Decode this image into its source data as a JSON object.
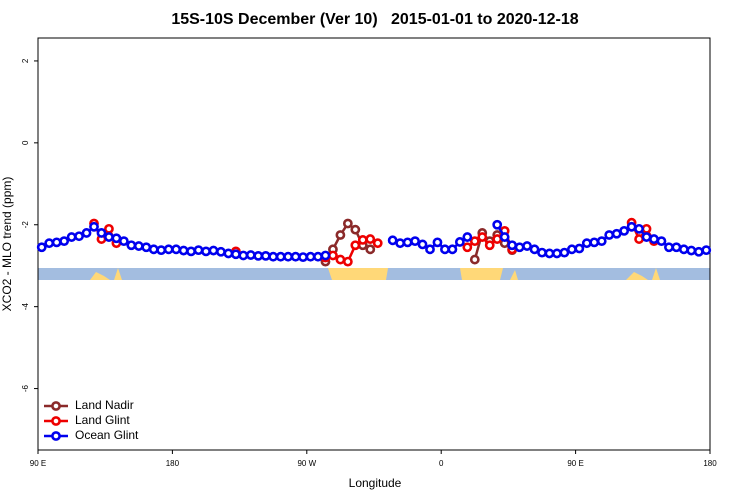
{
  "chart_data": {
    "type": "line",
    "title": "15S-10S December (Ver 10)   2015-01-01 to 2020-12-18",
    "x_label": "Longitude",
    "y_label": "XCO2 - MLO trend (ppm)",
    "xlim": [
      90,
      540
    ],
    "xticks": [
      {
        "value": 90,
        "label": "90 E"
      },
      180,
      {
        "value": 270,
        "label": "90 W"
      },
      {
        "value": 360,
        "label": "0"
      },
      {
        "value": 450,
        "label": "90 E"
      },
      {
        "value": 540,
        "label": "180"
      }
    ],
    "ylim": [
      -7.5,
      2.56
    ],
    "yticks": [
      2,
      0,
      -2,
      -4,
      -6
    ],
    "legend": "bottom-left",
    "x": [
      92.5,
      97.5,
      102.5,
      107.5,
      112.5,
      117.5,
      122.5,
      127.5,
      132.5,
      137.5,
      142.5,
      147.5,
      152.5,
      157.5,
      162.5,
      167.5,
      172.5,
      177.5,
      182.5,
      187.5,
      192.5,
      197.5,
      202.5,
      207.5,
      212.5,
      217.5,
      222.5,
      227.5,
      232.5,
      237.5,
      242.5,
      247.5,
      252.5,
      257.5,
      262.5,
      267.5,
      272.5,
      277.5,
      282.5,
      287.5,
      292.5,
      297.5,
      302.5,
      307.5,
      312.5,
      317.5,
      322.5,
      327.5,
      332.5,
      337.5,
      342.5,
      347.5,
      352.5,
      357.5,
      362.5,
      367.5,
      372.5,
      377.5,
      382.5,
      387.5,
      392.5,
      397.5,
      402.5,
      407.5,
      412.5,
      417.5,
      422.5,
      427.5,
      432.5,
      437.5,
      442.5,
      447.5,
      452.5,
      457.5,
      462.5,
      467.5,
      472.5,
      477.5,
      482.5,
      487.5,
      492.5,
      497.5,
      502.5,
      507.5,
      512.5,
      517.5,
      522.5,
      527.5,
      532.5,
      537.5
    ],
    "series": [
      {
        "name": "Land Nadir",
        "color": "#8b2a2a",
        "values": [
          null,
          null,
          null,
          null,
          null,
          null,
          null,
          null,
          null,
          null,
          null,
          null,
          null,
          null,
          null,
          null,
          null,
          null,
          null,
          null,
          null,
          null,
          null,
          null,
          null,
          null,
          null,
          null,
          null,
          null,
          null,
          null,
          null,
          null,
          null,
          null,
          null,
          null,
          -2.9,
          -2.6,
          -2.25,
          -1.97,
          -2.12,
          -2.5,
          -2.6,
          null,
          null,
          null,
          null,
          null,
          null,
          null,
          null,
          null,
          null,
          null,
          null,
          null,
          -2.85,
          -2.2,
          -2.4,
          -2.25,
          -2.45,
          -2.62,
          null,
          null,
          null,
          null,
          null,
          null,
          null,
          null,
          null,
          null,
          null,
          null,
          null,
          null,
          null,
          null,
          null,
          null,
          null,
          null,
          null,
          null,
          null,
          null,
          null,
          null
        ]
      },
      {
        "name": "Land Glint",
        "color": "#ee0000",
        "values": [
          null,
          null,
          null,
          null,
          null,
          null,
          null,
          -1.97,
          -2.35,
          -2.1,
          -2.45,
          null,
          null,
          null,
          null,
          null,
          null,
          null,
          null,
          null,
          null,
          null,
          null,
          null,
          null,
          null,
          -2.65,
          null,
          null,
          null,
          null,
          null,
          null,
          null,
          null,
          null,
          null,
          null,
          -2.8,
          -2.75,
          -2.85,
          -2.9,
          -2.5,
          -2.37,
          -2.35,
          -2.45,
          null,
          null,
          null,
          null,
          null,
          null,
          null,
          null,
          null,
          null,
          null,
          -2.55,
          -2.4,
          -2.3,
          -2.5,
          -2.35,
          -2.15,
          -2.6,
          null,
          null,
          null,
          null,
          null,
          null,
          null,
          null,
          null,
          null,
          null,
          null,
          null,
          null,
          null,
          -1.95,
          -2.35,
          -2.1,
          -2.4,
          null,
          null,
          null,
          null,
          null,
          null,
          null
        ]
      },
      {
        "name": "Ocean Glint",
        "color": "#0000ee",
        "values": [
          -2.55,
          -2.45,
          -2.43,
          -2.4,
          -2.3,
          -2.28,
          -2.2,
          -2.05,
          -2.2,
          -2.3,
          -2.33,
          -2.4,
          -2.5,
          -2.52,
          -2.55,
          -2.6,
          -2.62,
          -2.6,
          -2.6,
          -2.63,
          -2.65,
          -2.62,
          -2.65,
          -2.63,
          -2.66,
          -2.7,
          -2.72,
          -2.75,
          -2.74,
          -2.76,
          -2.76,
          -2.78,
          -2.78,
          -2.78,
          -2.78,
          -2.79,
          -2.78,
          -2.78,
          -2.75,
          null,
          null,
          null,
          null,
          null,
          null,
          null,
          null,
          -2.38,
          -2.45,
          -2.43,
          -2.4,
          -2.48,
          -2.6,
          -2.43,
          -2.6,
          -2.6,
          -2.42,
          -2.3,
          null,
          null,
          null,
          -2.0,
          -2.3,
          -2.5,
          -2.55,
          -2.52,
          -2.6,
          -2.68,
          -2.7,
          -2.7,
          -2.68,
          -2.6,
          -2.58,
          -2.45,
          -2.43,
          -2.4,
          -2.25,
          -2.22,
          -2.15,
          -2.05,
          -2.1,
          -2.3,
          -2.35,
          -2.4,
          -2.55,
          -2.55,
          -2.6,
          -2.63,
          -2.66,
          -2.62
        ]
      }
    ]
  }
}
